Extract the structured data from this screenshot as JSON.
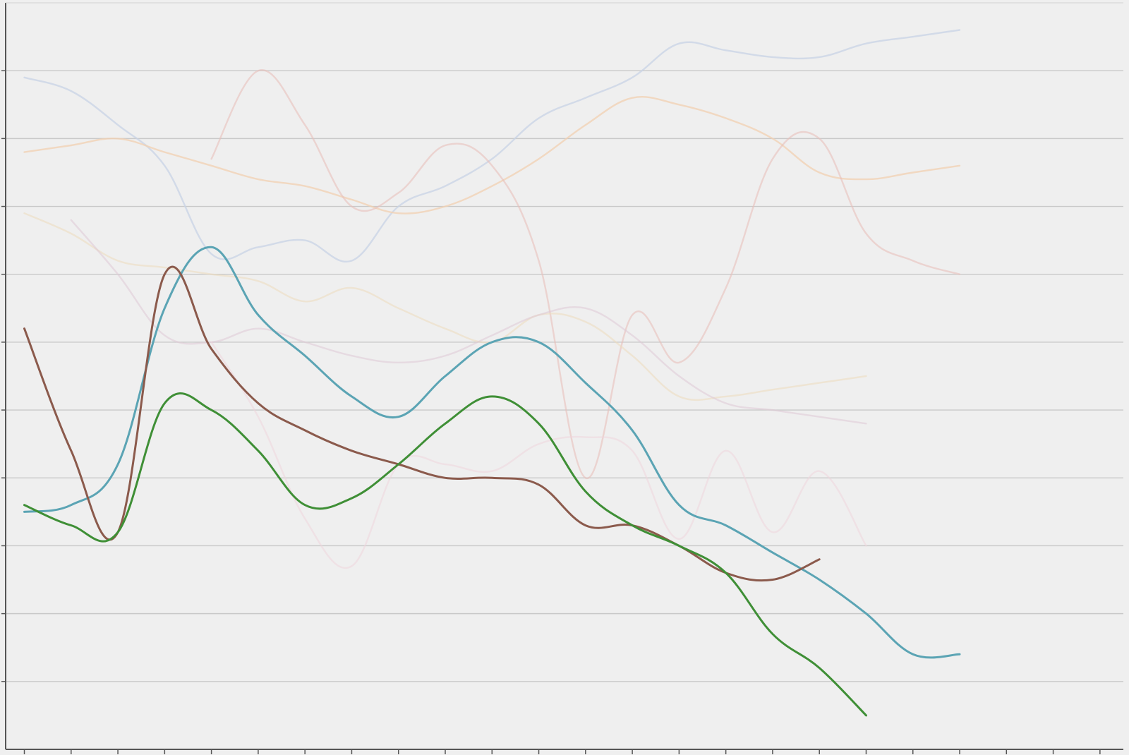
{
  "chart_data": {
    "type": "line",
    "title": "",
    "xlabel": "",
    "ylabel": "",
    "x": [
      0,
      1,
      2,
      3,
      4,
      5,
      6,
      7,
      8,
      9,
      10,
      11,
      12,
      13,
      14,
      15,
      16,
      17,
      18,
      19,
      20,
      21,
      22,
      23
    ],
    "xlim": [
      -0.4,
      23.5
    ],
    "ylim": [
      0,
      11
    ],
    "grid": true,
    "legend": "none",
    "series": [
      {
        "color": "#c8d3e6",
        "opacity": 0.75,
        "values": [
          9.9,
          9.7,
          9.2,
          8.6,
          7.3,
          7.4,
          7.5,
          7.2,
          8.0,
          8.3,
          8.7,
          9.3,
          9.6,
          9.9,
          10.4,
          10.3,
          10.2,
          10.2,
          10.4,
          10.5,
          10.6,
          null,
          null,
          null
        ]
      },
      {
        "color": "#f2d0b2",
        "opacity": 0.75,
        "values": [
          8.8,
          8.9,
          9.0,
          8.8,
          8.6,
          8.4,
          8.3,
          8.1,
          7.9,
          8.0,
          8.3,
          8.7,
          9.2,
          9.6,
          9.5,
          9.3,
          9.0,
          8.5,
          8.4,
          8.5,
          8.6,
          null,
          null,
          null
        ]
      },
      {
        "color": "#e8c0bb",
        "opacity": 0.6,
        "values": [
          null,
          null,
          null,
          null,
          8.7,
          10.0,
          9.2,
          8.0,
          8.2,
          8.9,
          8.6,
          7.2,
          4.0,
          6.4,
          5.7,
          6.8,
          8.7,
          9.0,
          7.6,
          7.2,
          7.0,
          null,
          null,
          null
        ]
      },
      {
        "color": "#ecdcc0",
        "opacity": 0.6,
        "values": [
          7.9,
          7.6,
          7.2,
          7.1,
          7.0,
          6.9,
          6.6,
          6.8,
          6.5,
          6.2,
          6.0,
          6.4,
          6.3,
          5.8,
          5.2,
          5.2,
          5.3,
          5.4,
          5.5,
          null,
          null,
          null,
          null,
          null
        ]
      },
      {
        "color": "#dfc8d6",
        "opacity": 0.55,
        "values": [
          null,
          7.8,
          7.0,
          6.1,
          6.0,
          6.2,
          6.0,
          5.8,
          5.7,
          5.8,
          6.1,
          6.4,
          6.5,
          6.1,
          5.5,
          5.1,
          5.0,
          4.9,
          4.8,
          null,
          null,
          null,
          null,
          null
        ]
      },
      {
        "color": "#efd6dc",
        "opacity": 0.55,
        "values": [
          null,
          null,
          null,
          null,
          6.0,
          4.9,
          3.4,
          2.7,
          4.2,
          4.2,
          4.1,
          4.5,
          4.6,
          4.4,
          3.1,
          4.4,
          3.2,
          4.1,
          3.0,
          null,
          null,
          null,
          null,
          null
        ]
      },
      {
        "color": "#5ba4b4",
        "opacity": 1,
        "values": [
          3.5,
          3.6,
          4.2,
          6.5,
          7.4,
          6.4,
          5.8,
          5.2,
          4.9,
          5.5,
          6.0,
          6.0,
          5.4,
          4.7,
          3.6,
          3.3,
          2.9,
          2.5,
          2.0,
          1.4,
          1.4,
          null,
          null,
          null
        ]
      },
      {
        "color": "#8b5a4c",
        "opacity": 1,
        "values": [
          6.2,
          4.4,
          3.2,
          7.0,
          5.9,
          5.1,
          4.7,
          4.4,
          4.2,
          4.0,
          4.0,
          3.9,
          3.3,
          3.3,
          3.0,
          2.6,
          2.5,
          2.8,
          null,
          null,
          null,
          null,
          null,
          null
        ]
      },
      {
        "color": "#3f8f36",
        "opacity": 1,
        "values": [
          3.6,
          3.3,
          3.2,
          5.1,
          5.0,
          4.4,
          3.6,
          3.7,
          4.2,
          4.8,
          5.2,
          4.8,
          3.8,
          3.3,
          3.0,
          2.6,
          1.7,
          1.2,
          0.5,
          null,
          null,
          null,
          null,
          null
        ]
      }
    ]
  }
}
